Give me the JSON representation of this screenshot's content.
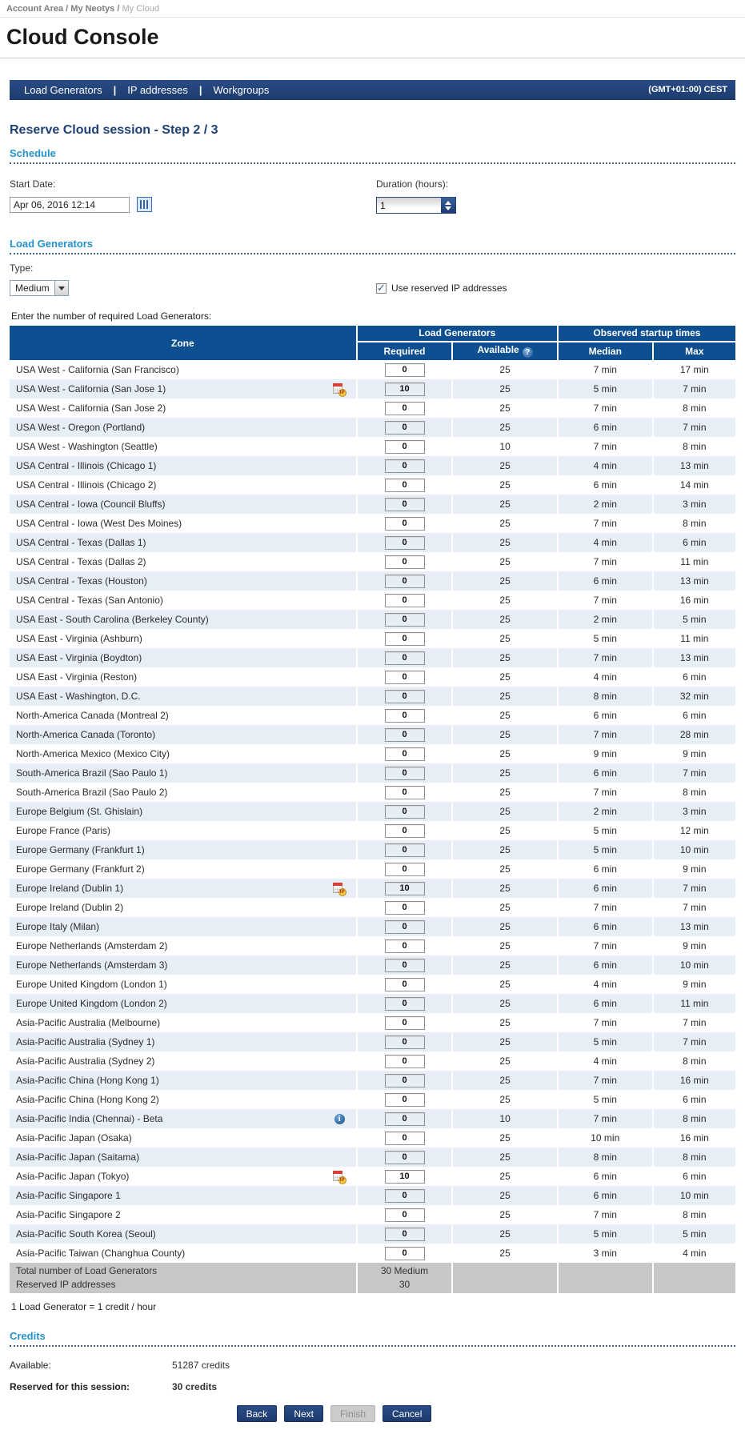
{
  "breadcrumb": {
    "items": [
      "Account Area",
      "My Neotys"
    ],
    "current": "My Cloud"
  },
  "page_title": "Cloud Console",
  "nav": {
    "items": [
      "Load Generators",
      "IP addresses",
      "Workgroups"
    ],
    "timezone": "(GMT+01:00) CEST"
  },
  "step_title": "Reserve Cloud session - Step 2 / 3",
  "icons": {
    "reserved_ip_badge_label": "IP",
    "info_glyph": "i",
    "help_glyph": "?"
  },
  "schedule": {
    "section_title": "Schedule",
    "start_date_label": "Start Date:",
    "start_date_value": "Apr 06, 2016 12:14",
    "duration_label": "Duration (hours):",
    "duration_value": "1"
  },
  "load_generators": {
    "section_title": "Load Generators",
    "type_label": "Type:",
    "type_value": "Medium",
    "use_reserved_ip_label": "Use reserved IP addresses",
    "use_reserved_ip_checked": true,
    "table_intro": "Enter the number of required Load Generators:",
    "table": {
      "headers": {
        "zone": "Zone",
        "group_load_generators": "Load Generators",
        "group_startup_times": "Observed startup times",
        "required": "Required",
        "available": "Available",
        "median": "Median",
        "max": "Max"
      },
      "rows": [
        {
          "zone": "USA West - California (San Francisco)",
          "icon": null,
          "required": "0",
          "available": "25",
          "median": "7 min",
          "max": "17 min"
        },
        {
          "zone": "USA West - California (San Jose 1)",
          "icon": "reserved-ip-calendar-icon",
          "required": "10",
          "available": "25",
          "median": "5 min",
          "max": "7 min"
        },
        {
          "zone": "USA West - California (San Jose 2)",
          "icon": null,
          "required": "0",
          "available": "25",
          "median": "7 min",
          "max": "8 min"
        },
        {
          "zone": "USA West - Oregon (Portland)",
          "icon": null,
          "required": "0",
          "available": "25",
          "median": "6 min",
          "max": "7 min"
        },
        {
          "zone": "USA West - Washington (Seattle)",
          "icon": null,
          "required": "0",
          "available": "10",
          "median": "7 min",
          "max": "8 min"
        },
        {
          "zone": "USA Central - Illinois (Chicago 1)",
          "icon": null,
          "required": "0",
          "available": "25",
          "median": "4 min",
          "max": "13 min"
        },
        {
          "zone": "USA Central - Illinois (Chicago 2)",
          "icon": null,
          "required": "0",
          "available": "25",
          "median": "6 min",
          "max": "14 min"
        },
        {
          "zone": "USA Central - Iowa (Council Bluffs)",
          "icon": null,
          "required": "0",
          "available": "25",
          "median": "2 min",
          "max": "3 min"
        },
        {
          "zone": "USA Central - Iowa (West Des Moines)",
          "icon": null,
          "required": "0",
          "available": "25",
          "median": "7 min",
          "max": "8 min"
        },
        {
          "zone": "USA Central - Texas (Dallas 1)",
          "icon": null,
          "required": "0",
          "available": "25",
          "median": "4 min",
          "max": "6 min"
        },
        {
          "zone": "USA Central - Texas (Dallas 2)",
          "icon": null,
          "required": "0",
          "available": "25",
          "median": "7 min",
          "max": "11 min"
        },
        {
          "zone": "USA Central - Texas (Houston)",
          "icon": null,
          "required": "0",
          "available": "25",
          "median": "6 min",
          "max": "13 min"
        },
        {
          "zone": "USA Central - Texas (San Antonio)",
          "icon": null,
          "required": "0",
          "available": "25",
          "median": "7 min",
          "max": "16 min"
        },
        {
          "zone": "USA East - South Carolina (Berkeley County)",
          "icon": null,
          "required": "0",
          "available": "25",
          "median": "2 min",
          "max": "5 min"
        },
        {
          "zone": "USA East - Virginia (Ashburn)",
          "icon": null,
          "required": "0",
          "available": "25",
          "median": "5 min",
          "max": "11 min"
        },
        {
          "zone": "USA East - Virginia (Boydton)",
          "icon": null,
          "required": "0",
          "available": "25",
          "median": "7 min",
          "max": "13 min"
        },
        {
          "zone": "USA East - Virginia (Reston)",
          "icon": null,
          "required": "0",
          "available": "25",
          "median": "4 min",
          "max": "6 min"
        },
        {
          "zone": "USA East - Washington, D.C.",
          "icon": null,
          "required": "0",
          "available": "25",
          "median": "8 min",
          "max": "32 min"
        },
        {
          "zone": "North-America Canada (Montreal 2)",
          "icon": null,
          "required": "0",
          "available": "25",
          "median": "6 min",
          "max": "6 min"
        },
        {
          "zone": "North-America Canada (Toronto)",
          "icon": null,
          "required": "0",
          "available": "25",
          "median": "7 min",
          "max": "28 min"
        },
        {
          "zone": "North-America Mexico (Mexico City)",
          "icon": null,
          "required": "0",
          "available": "25",
          "median": "9 min",
          "max": "9 min"
        },
        {
          "zone": "South-America Brazil (Sao Paulo 1)",
          "icon": null,
          "required": "0",
          "available": "25",
          "median": "6 min",
          "max": "7 min"
        },
        {
          "zone": "South-America Brazil (Sao Paulo 2)",
          "icon": null,
          "required": "0",
          "available": "25",
          "median": "7 min",
          "max": "8 min"
        },
        {
          "zone": "Europe Belgium (St. Ghislain)",
          "icon": null,
          "required": "0",
          "available": "25",
          "median": "2 min",
          "max": "3 min"
        },
        {
          "zone": "Europe France (Paris)",
          "icon": null,
          "required": "0",
          "available": "25",
          "median": "5 min",
          "max": "12 min"
        },
        {
          "zone": "Europe Germany (Frankfurt 1)",
          "icon": null,
          "required": "0",
          "available": "25",
          "median": "5 min",
          "max": "10 min"
        },
        {
          "zone": "Europe Germany (Frankfurt 2)",
          "icon": null,
          "required": "0",
          "available": "25",
          "median": "6 min",
          "max": "9 min"
        },
        {
          "zone": "Europe Ireland (Dublin 1)",
          "icon": "reserved-ip-calendar-icon",
          "required": "10",
          "available": "25",
          "median": "6 min",
          "max": "7 min"
        },
        {
          "zone": "Europe Ireland (Dublin 2)",
          "icon": null,
          "required": "0",
          "available": "25",
          "median": "7 min",
          "max": "7 min"
        },
        {
          "zone": "Europe Italy (Milan)",
          "icon": null,
          "required": "0",
          "available": "25",
          "median": "6 min",
          "max": "13 min"
        },
        {
          "zone": "Europe Netherlands (Amsterdam 2)",
          "icon": null,
          "required": "0",
          "available": "25",
          "median": "7 min",
          "max": "9 min"
        },
        {
          "zone": "Europe Netherlands (Amsterdam 3)",
          "icon": null,
          "required": "0",
          "available": "25",
          "median": "6 min",
          "max": "10 min"
        },
        {
          "zone": "Europe United Kingdom (London 1)",
          "icon": null,
          "required": "0",
          "available": "25",
          "median": "4 min",
          "max": "9 min"
        },
        {
          "zone": "Europe United Kingdom (London 2)",
          "icon": null,
          "required": "0",
          "available": "25",
          "median": "6 min",
          "max": "11 min"
        },
        {
          "zone": "Asia-Pacific Australia (Melbourne)",
          "icon": null,
          "required": "0",
          "available": "25",
          "median": "7 min",
          "max": "7 min"
        },
        {
          "zone": "Asia-Pacific Australia (Sydney 1)",
          "icon": null,
          "required": "0",
          "available": "25",
          "median": "5 min",
          "max": "7 min"
        },
        {
          "zone": "Asia-Pacific Australia (Sydney 2)",
          "icon": null,
          "required": "0",
          "available": "25",
          "median": "4 min",
          "max": "8 min"
        },
        {
          "zone": "Asia-Pacific China (Hong Kong 1)",
          "icon": null,
          "required": "0",
          "available": "25",
          "median": "7 min",
          "max": "16 min"
        },
        {
          "zone": "Asia-Pacific China (Hong Kong 2)",
          "icon": null,
          "required": "0",
          "available": "25",
          "median": "5 min",
          "max": "6 min"
        },
        {
          "zone": "Asia-Pacific India (Chennai) - Beta",
          "icon": "info-icon",
          "required": "0",
          "available": "10",
          "median": "7 min",
          "max": "8 min"
        },
        {
          "zone": "Asia-Pacific Japan (Osaka)",
          "icon": null,
          "required": "0",
          "available": "25",
          "median": "10 min",
          "max": "16 min"
        },
        {
          "zone": "Asia-Pacific Japan (Saitama)",
          "icon": null,
          "required": "0",
          "available": "25",
          "median": "8 min",
          "max": "8 min"
        },
        {
          "zone": "Asia-Pacific Japan (Tokyo)",
          "icon": "reserved-ip-calendar-icon",
          "required": "10",
          "available": "25",
          "median": "6 min",
          "max": "6 min"
        },
        {
          "zone": "Asia-Pacific Singapore 1",
          "icon": null,
          "required": "0",
          "available": "25",
          "median": "6 min",
          "max": "10 min"
        },
        {
          "zone": "Asia-Pacific Singapore 2",
          "icon": null,
          "required": "0",
          "available": "25",
          "median": "7 min",
          "max": "8 min"
        },
        {
          "zone": "Asia-Pacific South Korea (Seoul)",
          "icon": null,
          "required": "0",
          "available": "25",
          "median": "5 min",
          "max": "5 min"
        },
        {
          "zone": "Asia-Pacific Taiwan (Changhua County)",
          "icon": null,
          "required": "0",
          "available": "25",
          "median": "3 min",
          "max": "4 min"
        }
      ],
      "total": {
        "label_line1": "Total number of Load Generators",
        "label_line2": "Reserved IP addresses",
        "value_line1": "30 Medium",
        "value_line2": "30"
      }
    },
    "footnote": "1 Load Generator = 1 credit / hour"
  },
  "credits": {
    "section_title": "Credits",
    "available_label": "Available:",
    "available_value": "51287 credits",
    "reserved_label": "Reserved for this session:",
    "reserved_value": "30 credits"
  },
  "buttons": {
    "back": "Back",
    "next": "Next",
    "finish": "Finish",
    "cancel": "Cancel"
  },
  "colors": {
    "nav_bg": "#1d3f74",
    "table_header_bg": "#0d4f91",
    "section_title": "#2493cc",
    "shaded_row_bg": "#e8eef5",
    "total_row_bg": "#c7c7c7",
    "button_bg": "#1d3a6d",
    "disabled_button_bg": "#cbcbcb",
    "step_title": "#1d4077"
  }
}
